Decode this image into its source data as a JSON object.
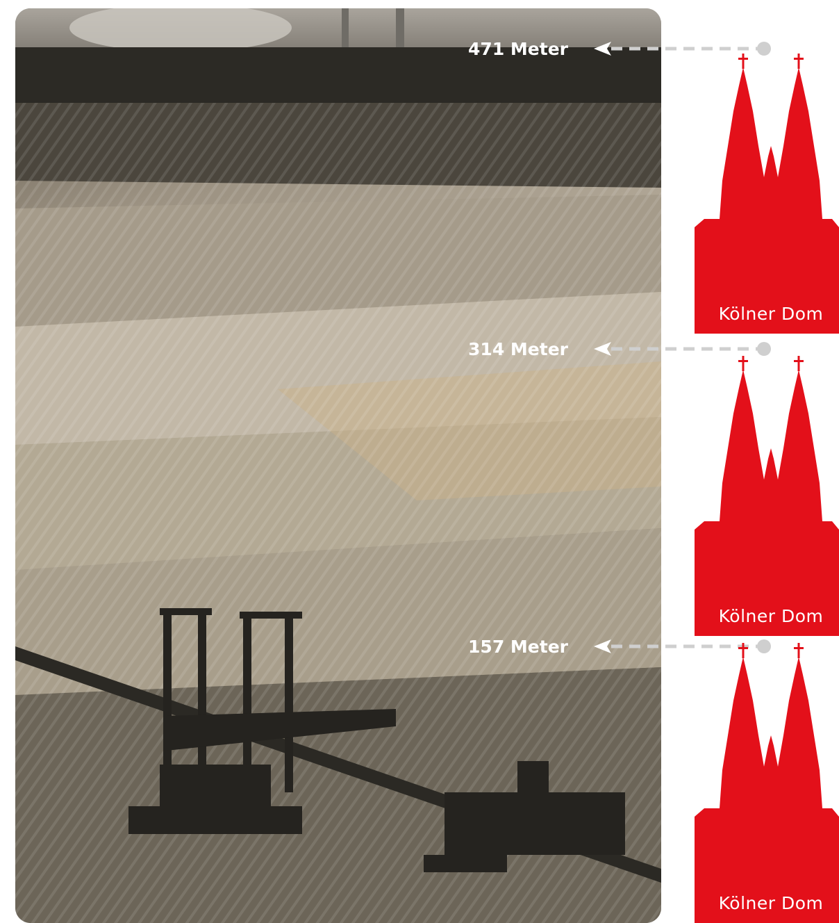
{
  "markers": [
    {
      "label": "471 Meter"
    },
    {
      "label": "314 Meter"
    },
    {
      "label": "157 Meter"
    }
  ],
  "cathedrals": [
    {
      "label": "Kölner Dom"
    },
    {
      "label": "Kölner Dom"
    },
    {
      "label": "Kölner Dom"
    }
  ]
}
